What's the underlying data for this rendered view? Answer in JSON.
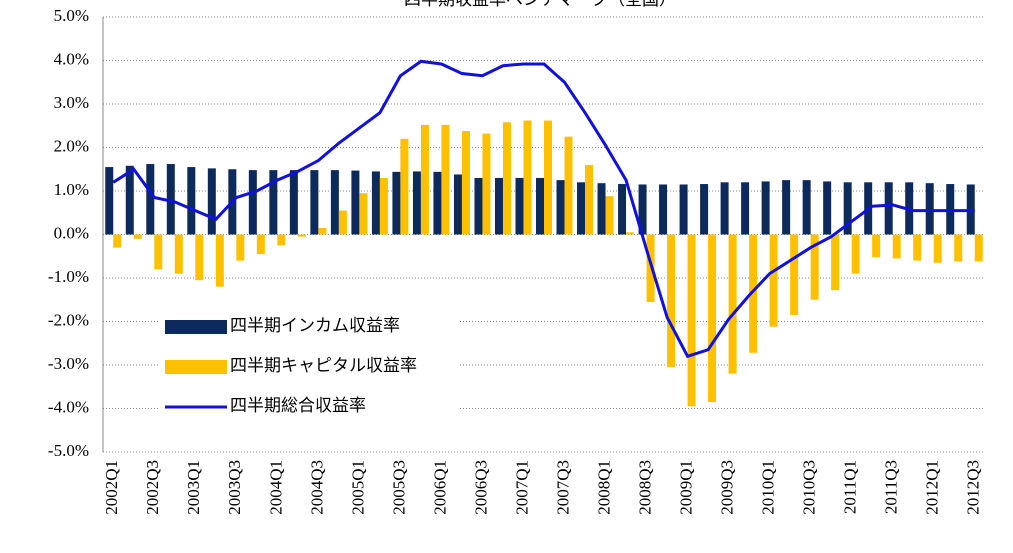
{
  "chart_data": {
    "type": "bar-line",
    "title": "四半期収益率ベンチマーク（全国）",
    "categories": [
      "2002Q1",
      null,
      "2002Q3",
      null,
      "2003Q1",
      null,
      "2003Q3",
      null,
      "2004Q1",
      null,
      "2004Q3",
      null,
      "2005Q1",
      null,
      "2005Q3",
      null,
      "2006Q1",
      null,
      "2006Q3",
      null,
      "2007Q1",
      null,
      "2007Q3",
      null,
      "2008Q1",
      null,
      "2008Q3",
      null,
      "2009Q1",
      null,
      "2009Q3",
      null,
      "2010Q1",
      null,
      "2010Q3",
      null,
      "2011Q1",
      null,
      "2011Q3",
      null,
      "2012Q1",
      null,
      "2012Q3"
    ],
    "series": [
      {
        "name": "四半期インカム収益率",
        "color": "#0d2a5c",
        "kind": "bar",
        "values": [
          1.55,
          1.58,
          1.62,
          1.62,
          1.55,
          1.52,
          1.5,
          1.48,
          1.48,
          1.48,
          1.48,
          1.48,
          1.47,
          1.45,
          1.44,
          1.45,
          1.44,
          1.38,
          1.3,
          1.3,
          1.3,
          1.3,
          1.25,
          1.2,
          1.18,
          1.16,
          1.15,
          1.15,
          1.15,
          1.16,
          1.2,
          1.2,
          1.22,
          1.25,
          1.25,
          1.22,
          1.2,
          1.2,
          1.2,
          1.2,
          1.18,
          1.16,
          1.15
        ]
      },
      {
        "name": "四半期キャピタル収益率",
        "color": "#ffc000",
        "kind": "bar",
        "values": [
          -0.3,
          -0.1,
          -0.8,
          -0.9,
          -1.05,
          -1.2,
          -0.6,
          -0.45,
          -0.25,
          -0.05,
          0.15,
          0.55,
          0.95,
          1.3,
          2.2,
          2.52,
          2.52,
          2.38,
          2.32,
          2.58,
          2.62,
          2.62,
          2.25,
          1.6,
          0.88,
          0.05,
          -1.55,
          -3.05,
          -3.95,
          -3.85,
          -3.2,
          -2.72,
          -2.12,
          -1.85,
          -1.5,
          -1.28,
          -0.9,
          -0.52,
          -0.55,
          -0.6,
          -0.65,
          -0.62,
          -0.62
        ]
      },
      {
        "name": "四半期総合収益率",
        "color": "#1010e0",
        "kind": "line",
        "values": [
          1.2,
          1.5,
          0.85,
          0.75,
          0.55,
          0.35,
          0.85,
          1.0,
          1.25,
          1.45,
          1.7,
          2.1,
          2.45,
          2.8,
          3.65,
          3.98,
          3.92,
          3.7,
          3.65,
          3.88,
          3.92,
          3.92,
          3.5,
          2.8,
          2.05,
          1.25,
          -0.35,
          -1.9,
          -2.8,
          -2.65,
          -1.95,
          -1.4,
          -0.9,
          -0.6,
          -0.3,
          -0.05,
          0.3,
          0.65,
          0.68,
          0.55,
          0.55,
          0.55,
          0.55
        ]
      }
    ],
    "ylim": [
      -5,
      5
    ],
    "yticks": [
      {
        "value": -5,
        "label": "-5.0%"
      },
      {
        "value": -4,
        "label": "-4.0%"
      },
      {
        "value": -3,
        "label": "-3.0%"
      },
      {
        "value": -2,
        "label": "-2.0%"
      },
      {
        "value": -1,
        "label": "-1.0%"
      },
      {
        "value": 0,
        "label": "0.0%"
      },
      {
        "value": 1,
        "label": "1.0%"
      },
      {
        "value": 2,
        "label": "2.0%"
      },
      {
        "value": 3,
        "label": "3.0%"
      },
      {
        "value": 4,
        "label": "4.0%"
      },
      {
        "value": 5,
        "label": "5.0%"
      }
    ],
    "grid": true
  }
}
